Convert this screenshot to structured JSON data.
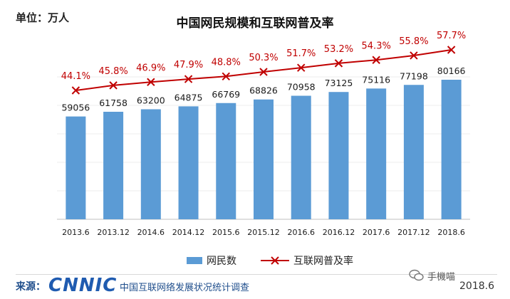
{
  "unit_label": "单位：万人",
  "title": "中国网民规模和互联网普及率",
  "legend": {
    "bar": "网民数",
    "line": "互联网普及率"
  },
  "footer": {
    "source_label": "来源：",
    "logo_text": "CNNIC",
    "source_text": "中国互联网络发展状况统计调查",
    "date": "2018.6"
  },
  "watermark": {
    "text": "手機喵",
    "icon": "wechat-icon"
  },
  "colors": {
    "bar": "#5b9bd5",
    "line": "#c00000",
    "line_label": "#c00000"
  },
  "chart_data": {
    "type": "bar",
    "title": "中国网民规模和互联网普及率",
    "categories": [
      "2013.6",
      "2013.12",
      "2014.6",
      "2014.12",
      "2015.6",
      "2015.12",
      "2016.6",
      "2016.12",
      "2017.6",
      "2017.12",
      "2018.6"
    ],
    "series": [
      {
        "name": "网民数",
        "type": "bar",
        "values": [
          59056,
          61758,
          63200,
          64875,
          66769,
          68826,
          70958,
          73125,
          75116,
          77198,
          80166
        ],
        "labels": [
          "59056",
          "61758",
          "63200",
          "64875",
          "66769",
          "68826",
          "70958",
          "73125",
          "75116",
          "77198",
          "80166"
        ]
      },
      {
        "name": "互联网普及率",
        "type": "line",
        "values": [
          44.1,
          45.8,
          46.9,
          47.9,
          48.8,
          50.3,
          51.7,
          53.2,
          54.3,
          55.8,
          57.7
        ],
        "labels": [
          "44.1%",
          "45.8%",
          "46.9%",
          "47.9%",
          "48.8%",
          "50.3%",
          "51.7%",
          "53.2%",
          "54.3%",
          "55.8%",
          "57.7%"
        ]
      }
    ],
    "ylabel": "万人",
    "grid": true,
    "legend_position": "bottom"
  }
}
